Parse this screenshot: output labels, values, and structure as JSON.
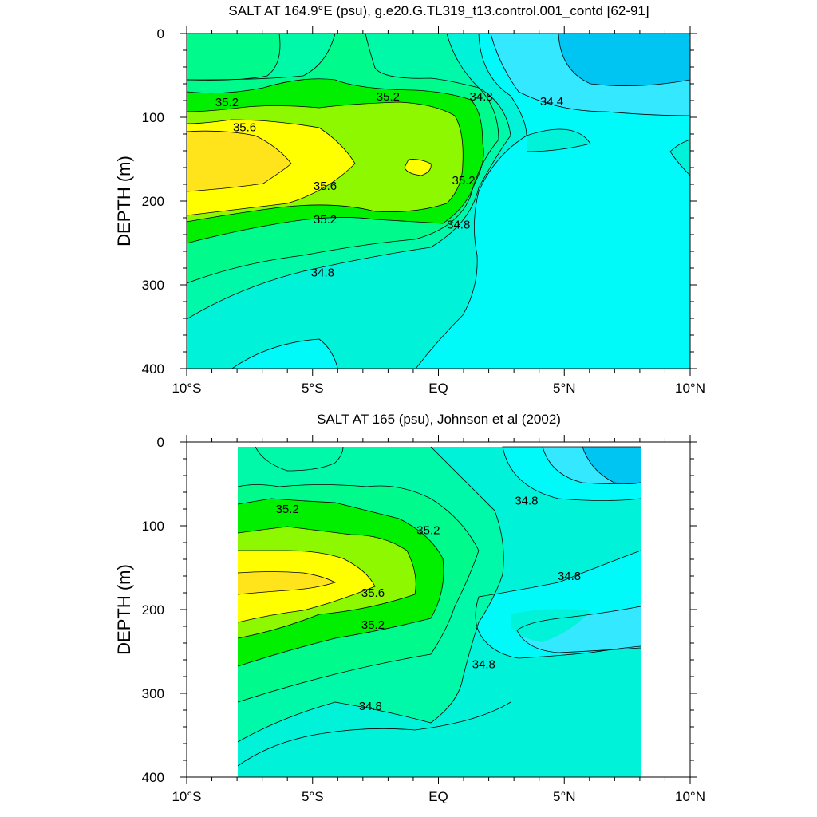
{
  "chart_data": [
    {
      "type": "contour",
      "title": "SALT AT 164.9°E (psu), g.e20.G.TL319_t13.control.001_contd [62-91]",
      "ylabel": "DEPTH (m)",
      "xlabel": "",
      "xlim": [
        -10,
        10
      ],
      "ylim": [
        0,
        400
      ],
      "y_inverted": true,
      "x_ticks": [
        {
          "value": -10,
          "label": "10°S"
        },
        {
          "value": -5,
          "label": "5°S"
        },
        {
          "value": 0,
          "label": "EQ"
        },
        {
          "value": 5,
          "label": "5°N"
        },
        {
          "value": 10,
          "label": "10°N"
        }
      ],
      "y_ticks": [
        {
          "value": 0,
          "label": "0"
        },
        {
          "value": 100,
          "label": "100"
        },
        {
          "value": 200,
          "label": "200"
        },
        {
          "value": 300,
          "label": "300"
        },
        {
          "value": 400,
          "label": "400"
        }
      ],
      "data_xrange": [
        -10,
        10
      ],
      "contour_interval": 0.2,
      "levels": [
        34.2,
        34.4,
        34.6,
        34.8,
        35.0,
        35.2,
        35.4,
        35.6,
        35.8
      ],
      "core": {
        "lon": -10,
        "depth": 160,
        "max_salinity": 35.8
      },
      "contour_labels": [
        {
          "text": "35.2",
          "lon": -8.4,
          "depth": 82
        },
        {
          "text": "35.6",
          "lon": -7.7,
          "depth": 112
        },
        {
          "text": "35.6",
          "lon": -4.5,
          "depth": 182
        },
        {
          "text": "35.2",
          "lon": -4.5,
          "depth": 222
        },
        {
          "text": "34.8",
          "lon": -4.6,
          "depth": 285
        },
        {
          "text": "35.2",
          "lon": -2.0,
          "depth": 75
        },
        {
          "text": "34.8",
          "lon": 1.7,
          "depth": 75
        },
        {
          "text": "34.4",
          "lon": 4.5,
          "depth": 81
        },
        {
          "text": "35.2",
          "lon": 1.0,
          "depth": 175
        },
        {
          "text": "34.8",
          "lon": 0.8,
          "depth": 228
        }
      ]
    },
    {
      "type": "contour",
      "title": "SALT AT 165 (psu), Johnson et al (2002)",
      "ylabel": "DEPTH (m)",
      "xlabel": "",
      "xlim": [
        -10,
        10
      ],
      "ylim": [
        0,
        400
      ],
      "y_inverted": true,
      "x_ticks": [
        {
          "value": -10,
          "label": "10°S"
        },
        {
          "value": -5,
          "label": "5°S"
        },
        {
          "value": 0,
          "label": "EQ"
        },
        {
          "value": 5,
          "label": "5°N"
        },
        {
          "value": 10,
          "label": "10°N"
        }
      ],
      "y_ticks": [
        {
          "value": 0,
          "label": "0"
        },
        {
          "value": 100,
          "label": "100"
        },
        {
          "value": 200,
          "label": "200"
        },
        {
          "value": 300,
          "label": "300"
        },
        {
          "value": 400,
          "label": "400"
        }
      ],
      "data_xrange": [
        -8,
        8
      ],
      "contour_interval": 0.2,
      "levels": [
        34.2,
        34.4,
        34.6,
        34.8,
        35.0,
        35.2,
        35.4,
        35.6,
        35.8
      ],
      "core": {
        "lon": -8,
        "depth": 165,
        "max_salinity": 35.8
      },
      "contour_labels": [
        {
          "text": "35.2",
          "lon": -6.0,
          "depth": 80
        },
        {
          "text": "35.2",
          "lon": -0.4,
          "depth": 105
        },
        {
          "text": "35.6",
          "lon": -2.6,
          "depth": 180
        },
        {
          "text": "35.2",
          "lon": -2.6,
          "depth": 218
        },
        {
          "text": "34.8",
          "lon": -2.7,
          "depth": 315
        },
        {
          "text": "34.8",
          "lon": 3.5,
          "depth": 70
        },
        {
          "text": "34.8",
          "lon": 5.2,
          "depth": 160
        },
        {
          "text": "34.8",
          "lon": 1.8,
          "depth": 265
        }
      ]
    }
  ],
  "colors": {
    "s_le_34_2": "#00c4f2",
    "s_34_2_34_4": "#33e8ff",
    "s_34_4_34_6": "#00fafa",
    "s_34_6_34_8": "#00f3d8",
    "s_34_8_35_0": "#00f9a8",
    "s_35_0_35_2": "#00fa8c",
    "s_35_2_35_4": "#00f000",
    "s_35_4_35_6": "#8ef800",
    "s_35_6_35_8": "#ffff00",
    "s_ge_35_8": "#ffe41c",
    "contour_line": "#000000"
  }
}
